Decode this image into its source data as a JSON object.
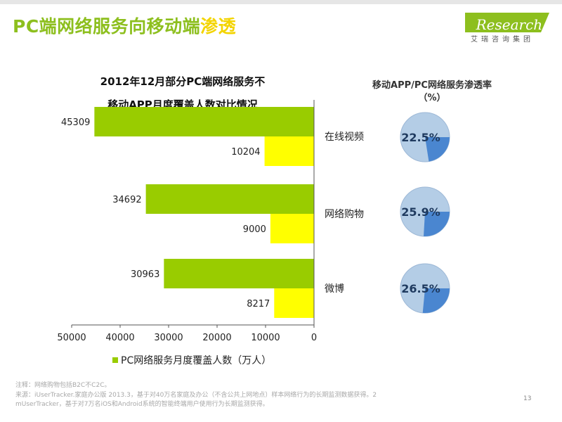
{
  "page": {
    "title": "PC端网络服务向移动端",
    "title_highlight": "渗透",
    "page_number": "13"
  },
  "logo": {
    "text_mark": "i",
    "text_rest": "Research",
    "subtitle": "艾瑞咨询集团",
    "color": "#8dbf1e"
  },
  "right_panel": {
    "title_line1": "移动APP/PC网络服务渗透率",
    "title_line2": "（%）"
  },
  "footer": {
    "note_line1": "注释：网络购物包括B2C不C2C。",
    "note_line2": "来源：iUserTracker.家庭办公版 2013.3，基于对40万名家庭及办公（不含公共上网地点）样本网络行为的长期监测数据获得。2",
    "note_line3": "mUserTracker，基于对7万名iOS和Android系统的智能终端用户使用行为长期监测获得。"
  },
  "chart_data": {
    "type": "bar",
    "orientation": "horizontal",
    "title_line1": "2012年12月部分PC端网络服务不",
    "title_line2": "移动APP月度覆盖人数对比情况",
    "categories": [
      "在线视频",
      "网络购物",
      "微博"
    ],
    "series": [
      {
        "name": "PC网络服务月度覆盖人数（万人）",
        "values": [
          45309,
          34692,
          30963
        ],
        "color": "#99cc00"
      },
      {
        "values": [
          10204,
          9000,
          8217
        ],
        "color": "#ffff00"
      }
    ],
    "xlim": [
      0,
      50000
    ],
    "x_reversed": true,
    "x_ticks": [
      50000,
      40000,
      30000,
      20000,
      10000,
      0
    ],
    "penetration_rates": [
      {
        "value": 22.5,
        "label": "22.5%"
      },
      {
        "value": 25.9,
        "label": "25.9%"
      },
      {
        "value": 26.5,
        "label": "26.5%"
      }
    ],
    "legend_position": "bottom",
    "pie_colors": {
      "base": "#b4cde6",
      "slice": "#4a86d0",
      "text": "#1f3a5f"
    }
  }
}
